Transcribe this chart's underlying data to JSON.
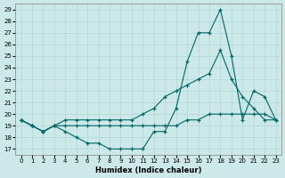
{
  "xlabel": "Humidex (Indice chaleur)",
  "bg_color": "#cce8e8",
  "line_color": "#006666",
  "xlim": [
    -0.5,
    23.5
  ],
  "ylim": [
    16.5,
    29.5
  ],
  "yticks": [
    17,
    18,
    19,
    20,
    21,
    22,
    23,
    24,
    25,
    26,
    27,
    28,
    29
  ],
  "xticks": [
    0,
    1,
    2,
    3,
    4,
    5,
    6,
    7,
    8,
    9,
    10,
    11,
    12,
    13,
    14,
    15,
    16,
    17,
    18,
    19,
    20,
    21,
    22,
    23
  ],
  "line1_x": [
    0,
    1,
    2,
    3,
    4,
    5,
    6,
    7,
    8,
    9,
    10,
    11,
    12,
    13,
    14,
    15,
    16,
    17,
    18,
    19,
    20,
    21,
    22,
    23
  ],
  "line1_y": [
    19.5,
    19.0,
    18.5,
    19.0,
    18.5,
    18.0,
    17.5,
    17.5,
    17.0,
    17.0,
    17.0,
    17.0,
    18.5,
    18.5,
    20.5,
    24.5,
    27.0,
    27.0,
    29.0,
    25.0,
    19.5,
    22.0,
    21.5,
    19.5
  ],
  "line2_x": [
    0,
    1,
    2,
    3,
    4,
    5,
    6,
    7,
    8,
    9,
    10,
    11,
    12,
    13,
    14,
    15,
    16,
    17,
    18,
    19,
    20,
    21,
    22,
    23
  ],
  "line2_y": [
    19.5,
    19.0,
    18.5,
    19.0,
    19.5,
    19.5,
    19.5,
    19.5,
    19.5,
    19.5,
    19.5,
    20.0,
    20.5,
    21.5,
    22.0,
    22.5,
    23.0,
    23.5,
    25.5,
    23.0,
    21.5,
    20.5,
    19.5,
    19.5
  ],
  "line3_x": [
    0,
    1,
    2,
    3,
    4,
    5,
    6,
    7,
    8,
    9,
    10,
    11,
    12,
    13,
    14,
    15,
    16,
    17,
    18,
    19,
    20,
    21,
    22,
    23
  ],
  "line3_y": [
    19.5,
    19.0,
    18.5,
    19.0,
    19.0,
    19.0,
    19.0,
    19.0,
    19.0,
    19.0,
    19.0,
    19.0,
    19.0,
    19.0,
    19.0,
    19.5,
    19.5,
    20.0,
    20.0,
    20.0,
    20.0,
    20.0,
    20.0,
    19.5
  ]
}
